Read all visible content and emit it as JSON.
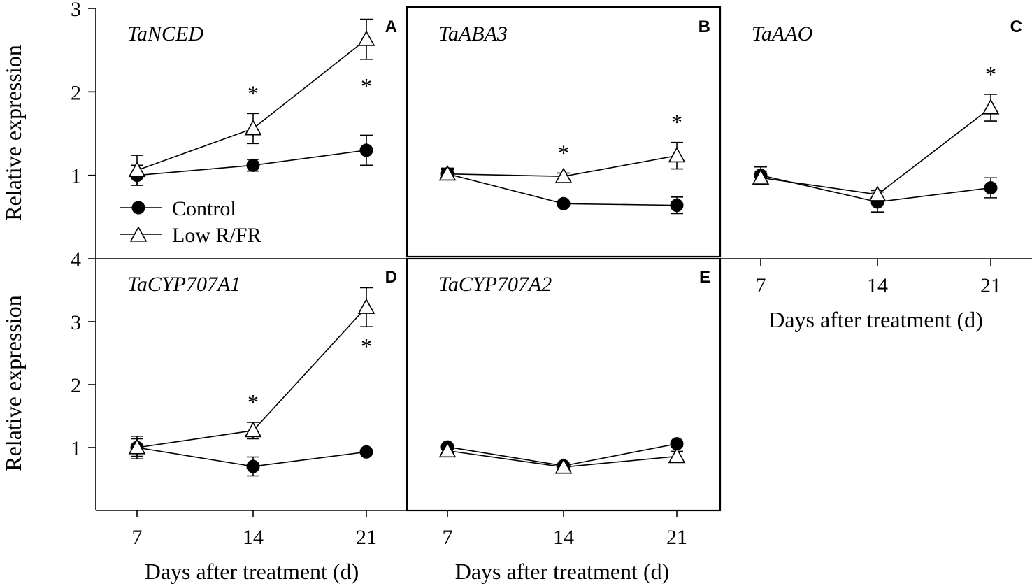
{
  "chart_data": [
    {
      "type": "line",
      "panel": "A",
      "title": "TaNCED",
      "x": [
        7,
        14,
        21
      ],
      "ylabel": "Relative expression",
      "ylim": [
        0,
        3
      ],
      "yticks": [
        "1",
        "2",
        "3"
      ],
      "series": [
        {
          "name": "Control",
          "values": [
            1.0,
            1.12,
            1.3
          ],
          "errors": [
            0.12,
            0.07,
            0.18
          ]
        },
        {
          "name": "Low R/FR",
          "values": [
            1.06,
            1.56,
            2.63
          ],
          "errors": [
            0.18,
            0.18,
            0.24
          ]
        }
      ],
      "significance": [
        "",
        "*",
        "*"
      ]
    },
    {
      "type": "line",
      "panel": "B",
      "title": "TaABA3",
      "x": [
        7,
        14,
        21
      ],
      "ylim": [
        0,
        3
      ],
      "series": [
        {
          "name": "Control",
          "values": [
            1.0,
            0.64,
            0.62
          ],
          "errors": [
            0.07,
            0.03,
            0.1
          ]
        },
        {
          "name": "Low R/FR",
          "values": [
            1.0,
            0.97,
            1.22
          ],
          "errors": [
            0.05,
            0.04,
            0.16
          ]
        }
      ],
      "significance": [
        "",
        "*",
        "*"
      ]
    },
    {
      "type": "line",
      "panel": "C",
      "title": "TaAAO",
      "x": [
        7,
        14,
        21
      ],
      "xlabel": "Days after treatment (d)",
      "xticks": [
        "7",
        "14",
        "21"
      ],
      "ylim": [
        0,
        3
      ],
      "series": [
        {
          "name": "Control",
          "values": [
            1.0,
            0.68,
            0.85
          ],
          "errors": [
            0.1,
            0.12,
            0.12
          ]
        },
        {
          "name": "Low R/FR",
          "values": [
            0.97,
            0.77,
            1.81
          ],
          "errors": [
            0.08,
            0.05,
            0.16
          ]
        }
      ],
      "significance": [
        "",
        "",
        "*"
      ]
    },
    {
      "type": "line",
      "panel": "D",
      "title": "TaCYP707A1",
      "x": [
        7,
        14,
        21
      ],
      "xlabel": "Days after treatment (d)",
      "xticks": [
        "7",
        "14",
        "21"
      ],
      "ylabel": "Relative expression",
      "ylim": [
        0,
        4
      ],
      "yticks": [
        "1",
        "2",
        "3",
        "4"
      ],
      "series": [
        {
          "name": "Control",
          "values": [
            1.0,
            0.7,
            0.93
          ],
          "errors": [
            0.18,
            0.15,
            0.02
          ]
        },
        {
          "name": "Low R/FR",
          "values": [
            1.0,
            1.27,
            3.23
          ],
          "errors": [
            0.14,
            0.13,
            0.31
          ]
        }
      ],
      "significance": [
        "",
        "*",
        "*"
      ]
    },
    {
      "type": "line",
      "panel": "E",
      "title": "TaCYP707A2",
      "x": [
        7,
        14,
        21
      ],
      "xlabel": "Days after treatment (d)",
      "xticks": [
        "7",
        "14",
        "21"
      ],
      "ylim": [
        0,
        4
      ],
      "series": [
        {
          "name": "Control",
          "values": [
            1.01,
            0.71,
            1.06
          ],
          "errors": [
            0.03,
            0.02,
            0.04
          ]
        },
        {
          "name": "Low R/FR",
          "values": [
            0.95,
            0.69,
            0.86
          ],
          "errors": [
            0.03,
            0.03,
            0.08
          ]
        }
      ],
      "significance": [
        "",
        "",
        ""
      ]
    }
  ],
  "legend": {
    "control_label": "Control",
    "lowrfr_label": "Low R/FR"
  },
  "colors": {
    "ink": "#000000",
    "background": "#ffffff"
  }
}
